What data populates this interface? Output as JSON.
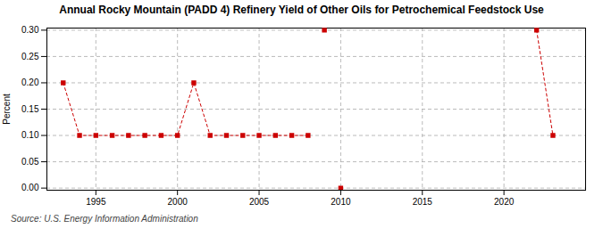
{
  "chart_data": {
    "type": "line",
    "title": "Annual Rocky Mountain (PADD 4) Refinery Yield of Other Oils for Petrochemical Feedstock Use",
    "ylabel": "Percent",
    "caption": "Source: U.S. Energy Information Administration",
    "x": [
      1993,
      1994,
      1995,
      1996,
      1997,
      1998,
      1999,
      2000,
      2001,
      2002,
      2003,
      2004,
      2005,
      2006,
      2007,
      2008,
      2009,
      2010,
      2022,
      2023
    ],
    "series": [
      {
        "color": "#cc0000",
        "line_style": "dashed",
        "marker": "square",
        "values": [
          0.2,
          0.1,
          0.1,
          0.1,
          0.1,
          0.1,
          0.1,
          0.1,
          0.2,
          0.1,
          0.1,
          0.1,
          0.1,
          0.1,
          0.1,
          0.1,
          null,
          null,
          0.3,
          0.1
        ]
      },
      {
        "color": "#cc0000",
        "line_style": "none",
        "marker": "square",
        "values": [
          null,
          null,
          null,
          null,
          null,
          null,
          null,
          null,
          null,
          null,
          null,
          null,
          null,
          null,
          null,
          null,
          0.3,
          0.0,
          null,
          null
        ]
      }
    ],
    "xlim": [
      1992,
      2025
    ],
    "xticks": [
      1995,
      2000,
      2005,
      2010,
      2015,
      2020
    ],
    "ylim": [
      -0.004,
      0.304
    ],
    "yticks": [
      {
        "value": 0.0,
        "label": "0.00"
      },
      {
        "value": 0.05,
        "label": "0.05"
      },
      {
        "value": 0.1,
        "label": "0.10"
      },
      {
        "value": 0.15,
        "label": "0.15"
      },
      {
        "value": 0.2,
        "label": "0.20"
      },
      {
        "value": 0.25,
        "label": "0.25"
      },
      {
        "value": 0.3,
        "label": "0.30"
      }
    ],
    "grid": true
  }
}
